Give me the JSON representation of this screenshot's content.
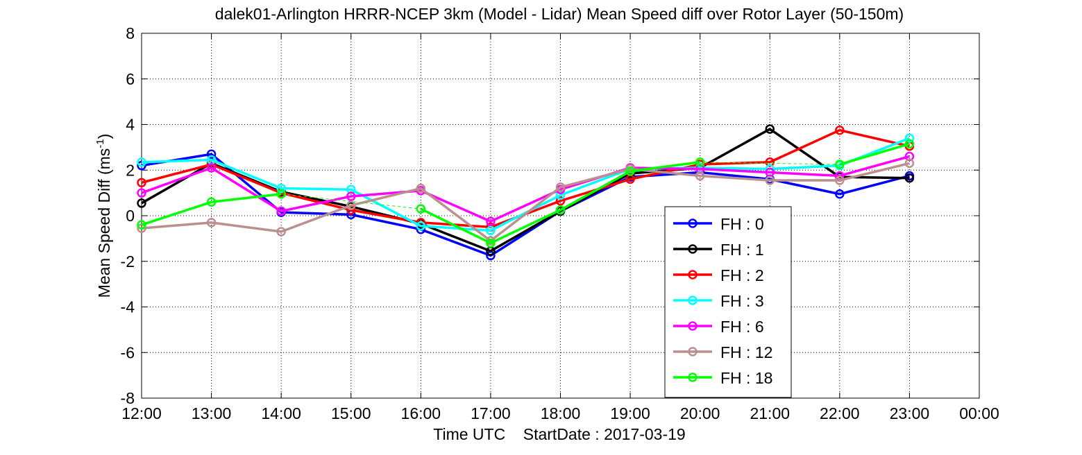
{
  "chart_data": {
    "type": "line",
    "title": "dalek01-Arlington HRRR-NCEP 3km (Model - Lidar) Mean Speed diff over Rotor Layer (50-150m)",
    "ylabel_main": "Mean Speed Diff (ms",
    "ylabel_sup": "-1",
    "ylabel_close": ")",
    "xlabel": "Time UTC    StartDate : 2017-03-19",
    "x_ticks": [
      "12:00",
      "13:00",
      "14:00",
      "15:00",
      "16:00",
      "17:00",
      "18:00",
      "19:00",
      "20:00",
      "21:00",
      "22:00",
      "23:00",
      "00:00"
    ],
    "y_ticks": [
      "-8",
      "-6",
      "-4",
      "-2",
      "0",
      "2",
      "4",
      "6",
      "8"
    ],
    "ylim": [
      -8,
      8
    ],
    "grid": true,
    "legend_position": "lower-center",
    "series": [
      {
        "name": "FH : 0",
        "color": "#0000ff",
        "values": [
          2.2,
          2.7,
          0.15,
          0.05,
          -0.6,
          -1.75,
          0.2,
          1.7,
          1.9,
          1.6,
          0.95,
          1.75
        ]
      },
      {
        "name": "FH : 1",
        "color": "#000000",
        "values": [
          0.55,
          2.3,
          1.05,
          0.4,
          -0.35,
          -1.55,
          0.2,
          1.85,
          2.1,
          3.8,
          1.7,
          1.65
        ]
      },
      {
        "name": "FH : 2",
        "color": "#ff0000",
        "values": [
          1.45,
          2.25,
          1.0,
          0.25,
          -0.3,
          -0.5,
          0.65,
          1.6,
          2.25,
          2.35,
          3.75,
          3.05
        ]
      },
      {
        "name": "FH : 3",
        "color": "#00ffff",
        "values": [
          2.35,
          2.45,
          1.2,
          1.15,
          -0.45,
          -0.65,
          0.9,
          2.05,
          2.1,
          2.05,
          2.2,
          3.4
        ]
      },
      {
        "name": "FH : 6",
        "color": "#ff00ff",
        "values": [
          1.0,
          2.1,
          0.2,
          0.85,
          1.1,
          -0.25,
          1.15,
          2.1,
          2.05,
          1.9,
          1.75,
          2.6
        ]
      },
      {
        "name": "FH : 12",
        "color": "#bc8f8f",
        "values": [
          -0.55,
          -0.3,
          -0.7,
          0.45,
          1.2,
          -1.1,
          1.25,
          2.05,
          1.75,
          1.55,
          1.55,
          2.3
        ]
      },
      {
        "name": "FH : 18",
        "color": "#00ff00",
        "values": [
          -0.4,
          0.6,
          0.95,
          null,
          0.3,
          -1.2,
          0.25,
          1.95,
          2.35,
          null,
          2.25,
          3.15
        ]
      }
    ]
  }
}
